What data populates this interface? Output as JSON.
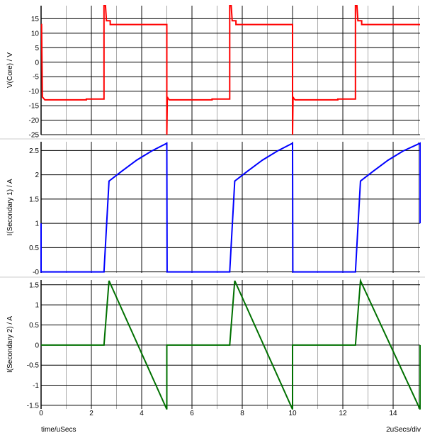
{
  "chart_data": [
    {
      "type": "line",
      "ylabel": "V(Core) / V",
      "ylim": [
        -25,
        19.5
      ],
      "yticks": [
        15,
        10,
        5,
        0,
        -5,
        -10,
        -15,
        -20,
        -25
      ],
      "ytick_labels": [
        "15",
        "10",
        "5",
        "0",
        "-5",
        "-10",
        "-15",
        "-20",
        "-25"
      ],
      "color": "#ff0000",
      "series": [
        {
          "name": "V(Core)",
          "x": [
            0,
            0.02,
            0.05,
            0.1,
            0.15,
            1.8,
            1.8,
            2.5,
            2.5,
            2.52,
            2.56,
            2.6,
            2.6,
            2.75,
            2.75,
            5,
            5,
            5.02,
            5.05,
            5.1,
            6.8,
            6.8,
            7.5,
            7.5,
            7.52,
            7.56,
            7.6,
            7.6,
            7.75,
            7.75,
            10,
            10,
            10.02,
            10.05,
            10.1,
            11.8,
            11.8,
            12.5,
            12.5,
            12.52,
            12.56,
            12.6,
            12.6,
            12.75,
            12.75,
            15.07
          ],
          "y": [
            13,
            13,
            -12,
            -12.5,
            -13,
            -13,
            -12.7,
            -12.7,
            19.5,
            19.5,
            19.5,
            14.3,
            14.3,
            14.3,
            13,
            13,
            -25,
            -12,
            -12.5,
            -13,
            -13,
            -12.7,
            -12.7,
            19.5,
            19.5,
            19.5,
            14.3,
            14.3,
            14.3,
            13,
            13,
            -25,
            -12,
            -12.5,
            -13,
            -13,
            -12.7,
            -12.7,
            19.5,
            19.5,
            19.5,
            14.3,
            14.3,
            14.3,
            13,
            13
          ]
        }
      ]
    },
    {
      "type": "line",
      "ylabel": "I(Secondary 1) / A",
      "ylim": [
        -0.02,
        2.68
      ],
      "yticks": [
        2.5,
        2,
        1.5,
        1,
        0.5,
        0
      ],
      "ytick_labels": [
        "2.5",
        "2",
        "1.5",
        "1",
        "0.5",
        "-0"
      ],
      "color": "#0000ff",
      "series": [
        {
          "name": "I(Secondary 1)",
          "x": [
            0,
            0,
            2.5,
            2.7,
            3.2,
            3.8,
            4.4,
            5,
            5.01,
            7.5,
            7.7,
            8.2,
            8.8,
            9.4,
            10,
            10.01,
            12.5,
            12.7,
            13.2,
            13.8,
            14.4,
            15.07,
            15.07
          ],
          "y": [
            1,
            0,
            0,
            1.87,
            2.07,
            2.3,
            2.49,
            2.65,
            0,
            0,
            1.87,
            2.07,
            2.3,
            2.49,
            2.65,
            0,
            0,
            1.87,
            2.07,
            2.3,
            2.49,
            2.65,
            1
          ]
        }
      ]
    },
    {
      "type": "line",
      "ylabel": "I(Secondary 2) / A",
      "xlabel": "time/uSecs",
      "xscale_label": "2uSecs/div",
      "xlim": [
        0,
        15.07
      ],
      "xticks": [
        0,
        2,
        4,
        6,
        8,
        10,
        12,
        14
      ],
      "xtick_labels": [
        "0",
        "2",
        "4",
        "6",
        "8",
        "10",
        "12",
        "14"
      ],
      "ylim": [
        -1.59,
        1.62
      ],
      "yticks": [
        1.5,
        1,
        0.5,
        0,
        -0.5,
        -1,
        -1.5
      ],
      "ytick_labels": [
        "1.5",
        "1",
        "0.5",
        "0",
        "-0.5",
        "-1",
        "-1.5"
      ],
      "color": "#007000",
      "series": [
        {
          "name": "I(Secondary 2)",
          "x": [
            0,
            2.5,
            2.7,
            5,
            5,
            7.5,
            7.7,
            10,
            10,
            12.5,
            12.7,
            15.07,
            15.07
          ],
          "y": [
            0,
            0,
            1.6,
            -1.6,
            0,
            0,
            1.6,
            -1.6,
            0,
            0,
            1.6,
            -1.6,
            0
          ]
        }
      ]
    }
  ]
}
